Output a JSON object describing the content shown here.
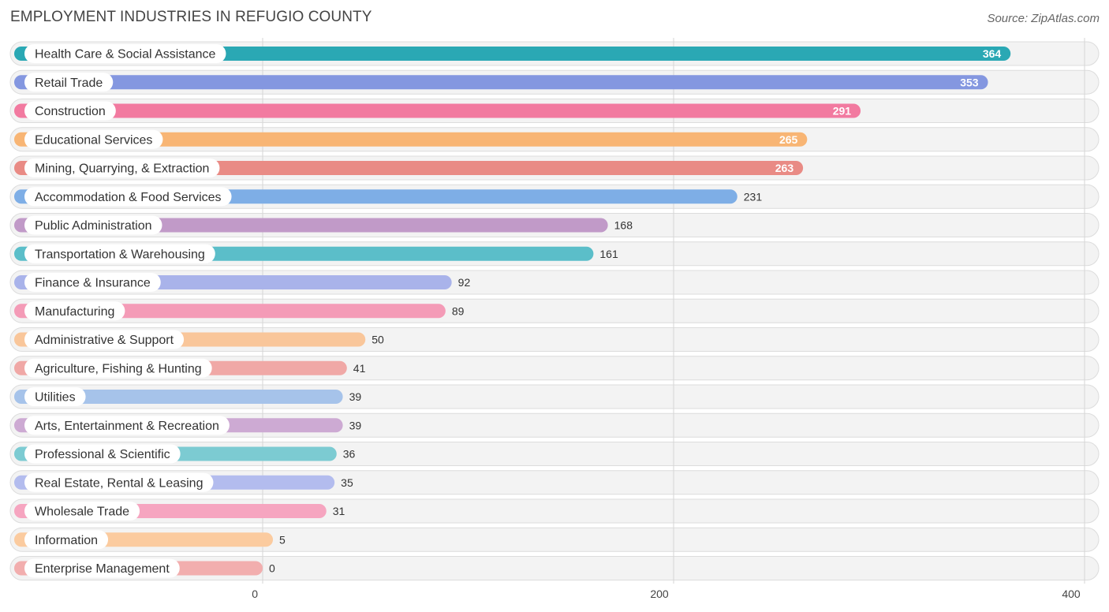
{
  "header": {
    "title": "EMPLOYMENT INDUSTRIES IN REFUGIO COUNTY",
    "source": "Source: ZipAtlas.com"
  },
  "chart_data": {
    "type": "bar",
    "orientation": "horizontal",
    "title": "EMPLOYMENT INDUSTRIES IN REFUGIO COUNTY",
    "xlabel": "",
    "ylabel": "",
    "xlim": [
      0,
      400
    ],
    "ticks": [
      0,
      200,
      400
    ],
    "grid": true,
    "categories": [
      "Health Care & Social Assistance",
      "Retail Trade",
      "Construction",
      "Educational Services",
      "Mining, Quarrying, & Extraction",
      "Accommodation & Food Services",
      "Public Administration",
      "Transportation & Warehousing",
      "Finance & Insurance",
      "Manufacturing",
      "Administrative & Support",
      "Agriculture, Fishing & Hunting",
      "Utilities",
      "Arts, Entertainment & Recreation",
      "Professional & Scientific",
      "Real Estate, Rental & Leasing",
      "Wholesale Trade",
      "Information",
      "Enterprise Management"
    ],
    "values": [
      364,
      353,
      291,
      265,
      263,
      231,
      168,
      161,
      92,
      89,
      50,
      41,
      39,
      39,
      36,
      35,
      31,
      5,
      0
    ],
    "colors": [
      "#2aa8b4",
      "#8497e0",
      "#f27aa0",
      "#f8b574",
      "#e98b85",
      "#7eaee6",
      "#c19ac8",
      "#5bbec9",
      "#a9b3ea",
      "#f49bb7",
      "#f9c69a",
      "#f0a8a6",
      "#a6c3ea",
      "#cdaad3",
      "#7ccbd2",
      "#b3bcee",
      "#f6a5c0",
      "#fbcb9f",
      "#f2aeae"
    ]
  }
}
